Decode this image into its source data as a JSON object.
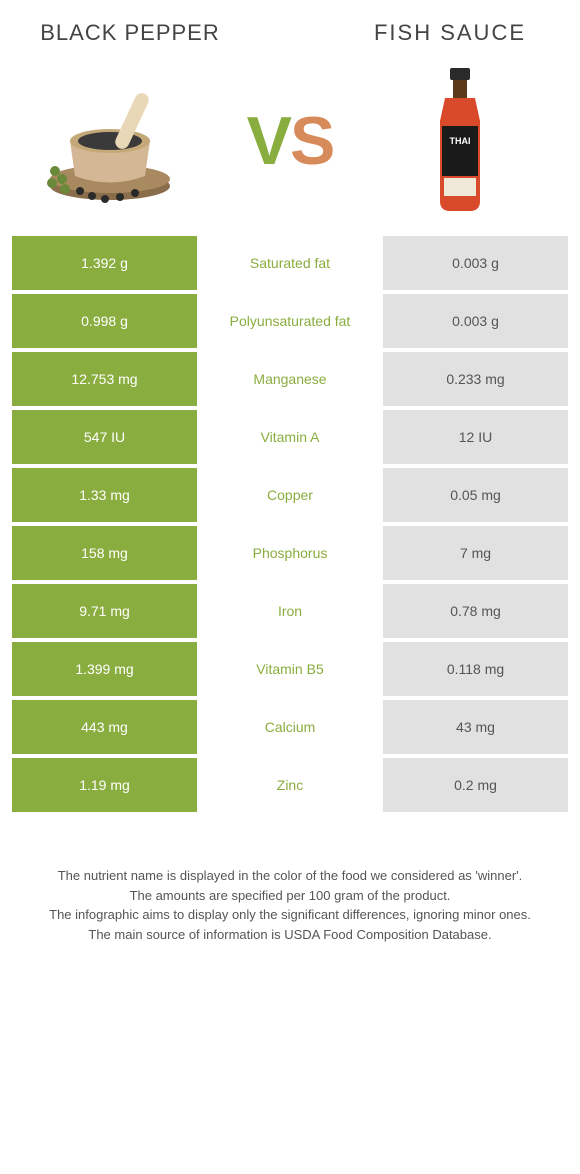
{
  "colors": {
    "left_bg": "#8aad3f",
    "right_bg": "#e1e1e1",
    "left_text": "#ffffff",
    "right_text": "#555555",
    "nutrient_winner_left": "#8aad3f",
    "nutrient_winner_right": "#d88b5a",
    "vs_v": "#8aad3f",
    "vs_s": "#d88b5a"
  },
  "left_product": {
    "title": "Black pepper"
  },
  "right_product": {
    "title": "Fish sauce"
  },
  "vs": {
    "v": "V",
    "s": "S"
  },
  "rows": [
    {
      "left": "1.392 g",
      "nutrient": "Saturated fat",
      "right": "0.003 g",
      "winner": "left"
    },
    {
      "left": "0.998 g",
      "nutrient": "Polyunsaturated fat",
      "right": "0.003 g",
      "winner": "left"
    },
    {
      "left": "12.753 mg",
      "nutrient": "Manganese",
      "right": "0.233 mg",
      "winner": "left"
    },
    {
      "left": "547 IU",
      "nutrient": "Vitamin A",
      "right": "12 IU",
      "winner": "left"
    },
    {
      "left": "1.33 mg",
      "nutrient": "Copper",
      "right": "0.05 mg",
      "winner": "left"
    },
    {
      "left": "158 mg",
      "nutrient": "Phosphorus",
      "right": "7 mg",
      "winner": "left"
    },
    {
      "left": "9.71 mg",
      "nutrient": "Iron",
      "right": "0.78 mg",
      "winner": "left"
    },
    {
      "left": "1.399 mg",
      "nutrient": "Vitamin B5",
      "right": "0.118 mg",
      "winner": "left"
    },
    {
      "left": "443 mg",
      "nutrient": "Calcium",
      "right": "43 mg",
      "winner": "left"
    },
    {
      "left": "1.19 mg",
      "nutrient": "Zinc",
      "right": "0.2 mg",
      "winner": "left"
    }
  ],
  "footer": {
    "line1": "The nutrient name is displayed in the color of the food we considered as 'winner'.",
    "line2": "The amounts are specified per 100 gram of the product.",
    "line3": "The infographic aims to display only the significant differences, ignoring minor ones.",
    "line4": "The main source of information is USDA Food Composition Database."
  }
}
